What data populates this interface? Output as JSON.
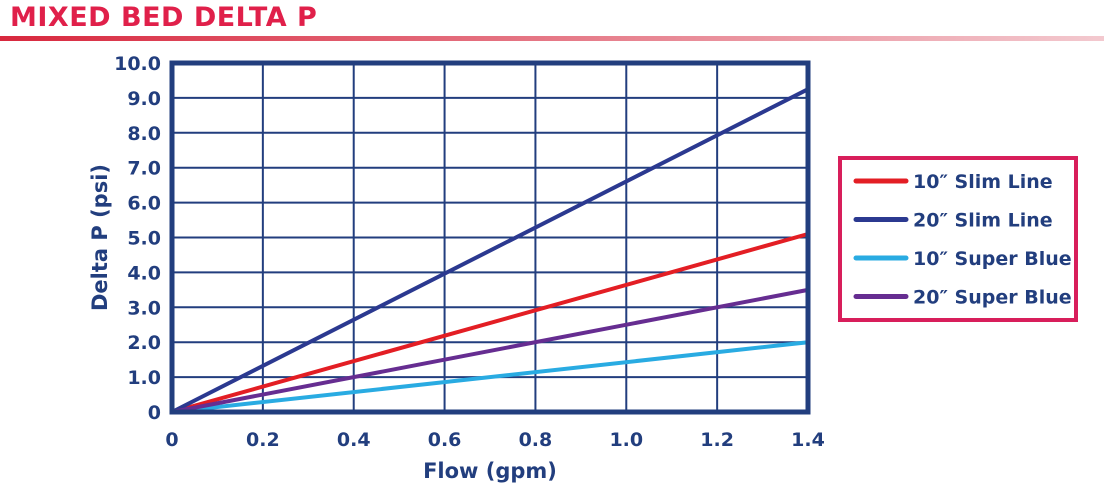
{
  "header": {
    "title": "MIXED BED DELTA P"
  },
  "colors": {
    "title": "#e0204a",
    "rule_start": "#d8283e",
    "rule_end": "#f3c9cf",
    "axis": "#223e7e",
    "grid": "#223e7e",
    "legend_border": "#d81e5b"
  },
  "chart_data": {
    "type": "line",
    "xlabel": "Flow (gpm)",
    "ylabel": "Delta P (psi)",
    "xlim": [
      0,
      1.4
    ],
    "ylim": [
      0,
      10
    ],
    "x_ticks": [
      "0",
      "0.2",
      "0.4",
      "0.6",
      "0.8",
      "1.0",
      "1.2",
      "1.4"
    ],
    "y_ticks": [
      "0",
      "1.0",
      "2.0",
      "3.0",
      "4.0",
      "5.0",
      "6.0",
      "7.0",
      "8.0",
      "9.0",
      "10.0"
    ],
    "grid": true,
    "legend_position": "right",
    "series": [
      {
        "name": "10″ Slim Line",
        "color": "#e31e24",
        "x": [
          0,
          1.4
        ],
        "y": [
          0,
          5.1
        ]
      },
      {
        "name": "20″ Slim Line",
        "color": "#2b3990",
        "x": [
          0,
          1.4
        ],
        "y": [
          0,
          9.25
        ]
      },
      {
        "name": "10″ Super Blue",
        "color": "#29abe2",
        "x": [
          0,
          1.4
        ],
        "y": [
          0,
          2.0
        ]
      },
      {
        "name": "20″ Super Blue",
        "color": "#662d91",
        "x": [
          0,
          1.4
        ],
        "y": [
          0,
          3.5
        ]
      }
    ]
  }
}
